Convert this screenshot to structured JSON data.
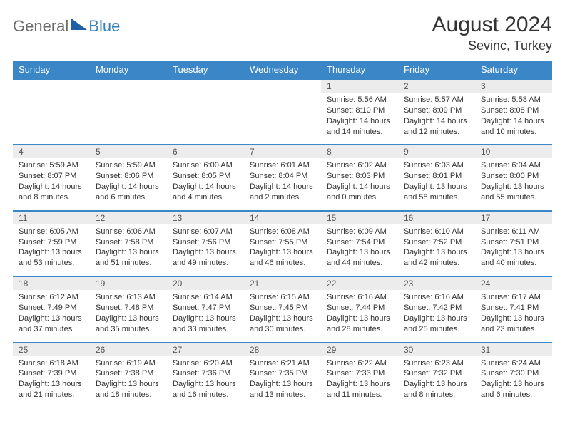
{
  "logo": {
    "general": "General",
    "blue": "Blue"
  },
  "title": {
    "month": "August 2024",
    "location": "Sevinc, Turkey"
  },
  "colors": {
    "header_bg": "#3b86c7",
    "header_text": "#ffffff",
    "daynum_bg": "#ececec",
    "border": "#3b86c7",
    "text": "#333333",
    "logo_gray": "#6b6b6b",
    "logo_blue": "#3b7fb8"
  },
  "weekdays": [
    "Sunday",
    "Monday",
    "Tuesday",
    "Wednesday",
    "Thursday",
    "Friday",
    "Saturday"
  ],
  "weeks": [
    {
      "nums": [
        "",
        "",
        "",
        "",
        "1",
        "2",
        "3"
      ],
      "cells": [
        null,
        null,
        null,
        null,
        {
          "sunrise": "Sunrise: 5:56 AM",
          "sunset": "Sunset: 8:10 PM",
          "day": "Daylight: 14 hours and 14 minutes."
        },
        {
          "sunrise": "Sunrise: 5:57 AM",
          "sunset": "Sunset: 8:09 PM",
          "day": "Daylight: 14 hours and 12 minutes."
        },
        {
          "sunrise": "Sunrise: 5:58 AM",
          "sunset": "Sunset: 8:08 PM",
          "day": "Daylight: 14 hours and 10 minutes."
        }
      ]
    },
    {
      "nums": [
        "4",
        "5",
        "6",
        "7",
        "8",
        "9",
        "10"
      ],
      "cells": [
        {
          "sunrise": "Sunrise: 5:59 AM",
          "sunset": "Sunset: 8:07 PM",
          "day": "Daylight: 14 hours and 8 minutes."
        },
        {
          "sunrise": "Sunrise: 5:59 AM",
          "sunset": "Sunset: 8:06 PM",
          "day": "Daylight: 14 hours and 6 minutes."
        },
        {
          "sunrise": "Sunrise: 6:00 AM",
          "sunset": "Sunset: 8:05 PM",
          "day": "Daylight: 14 hours and 4 minutes."
        },
        {
          "sunrise": "Sunrise: 6:01 AM",
          "sunset": "Sunset: 8:04 PM",
          "day": "Daylight: 14 hours and 2 minutes."
        },
        {
          "sunrise": "Sunrise: 6:02 AM",
          "sunset": "Sunset: 8:03 PM",
          "day": "Daylight: 14 hours and 0 minutes."
        },
        {
          "sunrise": "Sunrise: 6:03 AM",
          "sunset": "Sunset: 8:01 PM",
          "day": "Daylight: 13 hours and 58 minutes."
        },
        {
          "sunrise": "Sunrise: 6:04 AM",
          "sunset": "Sunset: 8:00 PM",
          "day": "Daylight: 13 hours and 55 minutes."
        }
      ]
    },
    {
      "nums": [
        "11",
        "12",
        "13",
        "14",
        "15",
        "16",
        "17"
      ],
      "cells": [
        {
          "sunrise": "Sunrise: 6:05 AM",
          "sunset": "Sunset: 7:59 PM",
          "day": "Daylight: 13 hours and 53 minutes."
        },
        {
          "sunrise": "Sunrise: 6:06 AM",
          "sunset": "Sunset: 7:58 PM",
          "day": "Daylight: 13 hours and 51 minutes."
        },
        {
          "sunrise": "Sunrise: 6:07 AM",
          "sunset": "Sunset: 7:56 PM",
          "day": "Daylight: 13 hours and 49 minutes."
        },
        {
          "sunrise": "Sunrise: 6:08 AM",
          "sunset": "Sunset: 7:55 PM",
          "day": "Daylight: 13 hours and 46 minutes."
        },
        {
          "sunrise": "Sunrise: 6:09 AM",
          "sunset": "Sunset: 7:54 PM",
          "day": "Daylight: 13 hours and 44 minutes."
        },
        {
          "sunrise": "Sunrise: 6:10 AM",
          "sunset": "Sunset: 7:52 PM",
          "day": "Daylight: 13 hours and 42 minutes."
        },
        {
          "sunrise": "Sunrise: 6:11 AM",
          "sunset": "Sunset: 7:51 PM",
          "day": "Daylight: 13 hours and 40 minutes."
        }
      ]
    },
    {
      "nums": [
        "18",
        "19",
        "20",
        "21",
        "22",
        "23",
        "24"
      ],
      "cells": [
        {
          "sunrise": "Sunrise: 6:12 AM",
          "sunset": "Sunset: 7:49 PM",
          "day": "Daylight: 13 hours and 37 minutes."
        },
        {
          "sunrise": "Sunrise: 6:13 AM",
          "sunset": "Sunset: 7:48 PM",
          "day": "Daylight: 13 hours and 35 minutes."
        },
        {
          "sunrise": "Sunrise: 6:14 AM",
          "sunset": "Sunset: 7:47 PM",
          "day": "Daylight: 13 hours and 33 minutes."
        },
        {
          "sunrise": "Sunrise: 6:15 AM",
          "sunset": "Sunset: 7:45 PM",
          "day": "Daylight: 13 hours and 30 minutes."
        },
        {
          "sunrise": "Sunrise: 6:16 AM",
          "sunset": "Sunset: 7:44 PM",
          "day": "Daylight: 13 hours and 28 minutes."
        },
        {
          "sunrise": "Sunrise: 6:16 AM",
          "sunset": "Sunset: 7:42 PM",
          "day": "Daylight: 13 hours and 25 minutes."
        },
        {
          "sunrise": "Sunrise: 6:17 AM",
          "sunset": "Sunset: 7:41 PM",
          "day": "Daylight: 13 hours and 23 minutes."
        }
      ]
    },
    {
      "nums": [
        "25",
        "26",
        "27",
        "28",
        "29",
        "30",
        "31"
      ],
      "cells": [
        {
          "sunrise": "Sunrise: 6:18 AM",
          "sunset": "Sunset: 7:39 PM",
          "day": "Daylight: 13 hours and 21 minutes."
        },
        {
          "sunrise": "Sunrise: 6:19 AM",
          "sunset": "Sunset: 7:38 PM",
          "day": "Daylight: 13 hours and 18 minutes."
        },
        {
          "sunrise": "Sunrise: 6:20 AM",
          "sunset": "Sunset: 7:36 PM",
          "day": "Daylight: 13 hours and 16 minutes."
        },
        {
          "sunrise": "Sunrise: 6:21 AM",
          "sunset": "Sunset: 7:35 PM",
          "day": "Daylight: 13 hours and 13 minutes."
        },
        {
          "sunrise": "Sunrise: 6:22 AM",
          "sunset": "Sunset: 7:33 PM",
          "day": "Daylight: 13 hours and 11 minutes."
        },
        {
          "sunrise": "Sunrise: 6:23 AM",
          "sunset": "Sunset: 7:32 PM",
          "day": "Daylight: 13 hours and 8 minutes."
        },
        {
          "sunrise": "Sunrise: 6:24 AM",
          "sunset": "Sunset: 7:30 PM",
          "day": "Daylight: 13 hours and 6 minutes."
        }
      ]
    }
  ]
}
